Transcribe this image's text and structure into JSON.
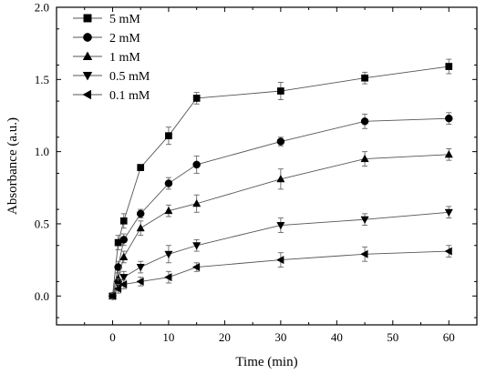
{
  "chart_data": {
    "type": "line",
    "xlabel": "Time (min)",
    "ylabel": "Absorbance (a.u.)",
    "xlim": [
      -10,
      65
    ],
    "ylim": [
      -0.2,
      2.0
    ],
    "xticks": [
      0,
      10,
      20,
      30,
      40,
      50,
      60
    ],
    "yticks": [
      0.0,
      0.5,
      1.0,
      1.5,
      2.0
    ],
    "ytick_labels": [
      "0.0",
      "0.5",
      "1.0",
      "1.5",
      "2.0"
    ],
    "grid": false,
    "legend_position": "top-left",
    "series": [
      {
        "name": "5 mM",
        "marker": "square",
        "x": [
          0,
          1,
          2,
          5,
          10,
          15,
          30,
          45,
          60
        ],
        "y": [
          0.0,
          0.37,
          0.52,
          0.89,
          1.11,
          1.37,
          1.42,
          1.51,
          1.59
        ],
        "err": [
          0.02,
          0.05,
          0.05,
          0.02,
          0.06,
          0.04,
          0.06,
          0.04,
          0.05
        ]
      },
      {
        "name": "2 mM",
        "marker": "circle",
        "x": [
          0,
          1,
          2,
          5,
          10,
          15,
          30,
          45,
          60
        ],
        "y": [
          0.0,
          0.2,
          0.39,
          0.57,
          0.78,
          0.91,
          1.07,
          1.21,
          1.23
        ],
        "err": [
          0.02,
          0.04,
          0.04,
          0.03,
          0.04,
          0.06,
          0.03,
          0.05,
          0.04
        ]
      },
      {
        "name": "1 mM",
        "marker": "triangle-up",
        "x": [
          0,
          1,
          2,
          5,
          10,
          15,
          30,
          45,
          60
        ],
        "y": [
          0.0,
          0.12,
          0.27,
          0.47,
          0.59,
          0.64,
          0.81,
          0.95,
          0.98
        ],
        "err": [
          0.02,
          0.04,
          0.04,
          0.05,
          0.04,
          0.06,
          0.07,
          0.05,
          0.04
        ]
      },
      {
        "name": "0.5 mM",
        "marker": "triangle-down",
        "x": [
          0,
          1,
          2,
          5,
          10,
          15,
          30,
          45,
          60
        ],
        "y": [
          0.0,
          0.08,
          0.13,
          0.2,
          0.29,
          0.35,
          0.49,
          0.53,
          0.58
        ],
        "err": [
          0.02,
          0.04,
          0.04,
          0.04,
          0.06,
          0.04,
          0.05,
          0.04,
          0.04
        ]
      },
      {
        "name": "0.1 mM",
        "marker": "triangle-left",
        "x": [
          0,
          1,
          2,
          5,
          10,
          15,
          30,
          45,
          60
        ],
        "y": [
          0.0,
          0.05,
          0.08,
          0.1,
          0.13,
          0.2,
          0.25,
          0.29,
          0.31
        ],
        "err": [
          0.02,
          0.03,
          0.03,
          0.03,
          0.04,
          0.03,
          0.05,
          0.05,
          0.04
        ]
      }
    ]
  }
}
